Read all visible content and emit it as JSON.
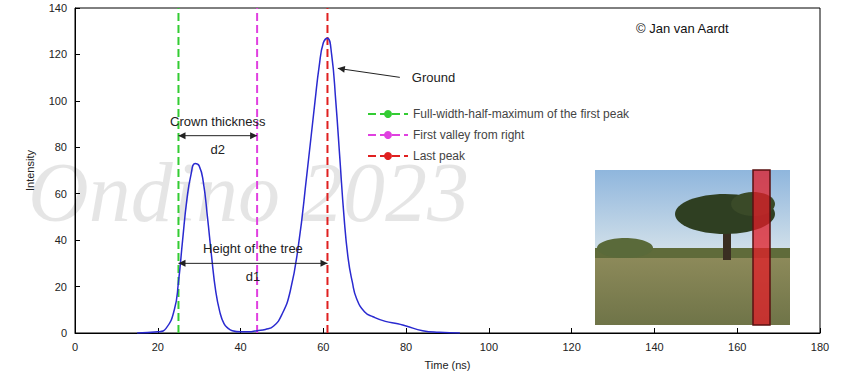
{
  "chart_data": {
    "type": "line",
    "xlabel": "Time (ns)",
    "ylabel": "Intensity",
    "x": [
      15,
      20,
      22,
      24,
      25,
      26,
      27,
      28,
      29,
      30,
      31,
      32,
      33,
      34,
      35,
      36,
      37,
      38,
      40,
      42,
      44,
      46,
      48,
      50,
      52,
      54,
      56,
      58,
      59,
      60,
      61,
      62,
      63,
      64,
      65,
      66,
      67,
      68,
      70,
      72,
      75,
      78,
      80,
      84,
      88,
      93
    ],
    "values": [
      0,
      0.5,
      2,
      10,
      22,
      40,
      57,
      68,
      73,
      72,
      65,
      50,
      33,
      18,
      9,
      4,
      2,
      1,
      0.5,
      0.5,
      1,
      1.5,
      3,
      8,
      18,
      38,
      68,
      100,
      115,
      125,
      127,
      120,
      100,
      75,
      50,
      32,
      22,
      15,
      9,
      7,
      5,
      4,
      3,
      1,
      0.3,
      0
    ],
    "color": "#2a2ad0",
    "xlim": [
      0,
      180
    ],
    "xticks": [
      0,
      20,
      40,
      60,
      80,
      100,
      120,
      140,
      160,
      180
    ],
    "ylim": [
      0,
      140
    ],
    "yticks": [
      0,
      20,
      40,
      60,
      80,
      100,
      120,
      140
    ],
    "grid": false,
    "markers": [
      {
        "name": "Full-width-half-maximum of the first peak",
        "x": 25,
        "color": "#33cc33",
        "line_style": "dashed"
      },
      {
        "name": "First valley from right",
        "x": 44,
        "color": "#e040e0",
        "line_style": "dashed"
      },
      {
        "name": "Last peak",
        "x": 61,
        "color": "#e02020",
        "line_style": "dashed"
      }
    ],
    "annotations": [
      {
        "text": "Ground",
        "x": 63.5,
        "y": 114
      },
      {
        "text": "Crown thickness",
        "label": "d2",
        "x": [
          25,
          44
        ],
        "y": 85
      },
      {
        "text": "Height of the tree",
        "label": "d1",
        "x": [
          25,
          61
        ],
        "y": 30
      }
    ],
    "copyright": "© Jan van Aardt",
    "watermark": "Ondino 2023"
  }
}
